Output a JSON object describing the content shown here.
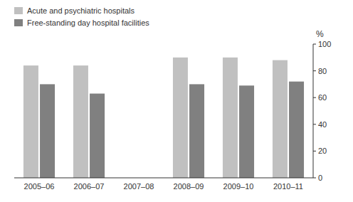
{
  "chart_data": {
    "type": "bar",
    "categories": [
      "2005–06",
      "2006–07",
      "2007–08",
      "2008–09",
      "2009–10",
      "2010–11"
    ],
    "series": [
      {
        "name": "Acute and psychiatric hospitals",
        "color": "#c0c0c0",
        "values": [
          84,
          84,
          null,
          90,
          90,
          88
        ]
      },
      {
        "name": "Free-standing day hospital facilities",
        "color": "#808080",
        "values": [
          70,
          63,
          null,
          70,
          69,
          72
        ]
      }
    ],
    "ylabel": "%",
    "ylim": [
      0,
      100
    ],
    "yticks": [
      0,
      20,
      40,
      60,
      80,
      100
    ],
    "grid": false,
    "legend": "upper left"
  }
}
